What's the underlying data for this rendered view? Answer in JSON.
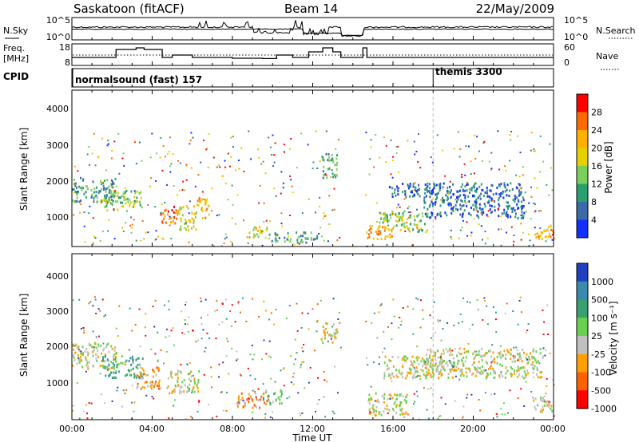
{
  "header": {
    "station": "Saskatoon (fitACF)",
    "beam": "Beam 14",
    "date": "22/May/2009"
  },
  "noise_panel": {
    "left_label": "N.Sky",
    "right_label": "N.Search",
    "left_ticks": [
      "10^5",
      "10^0"
    ],
    "right_ticks": [
      "10^5",
      "10^0"
    ]
  },
  "freq_panel": {
    "left_label_1": "Freq.",
    "left_label_2": "[MHz]",
    "right_label": "Nave",
    "left_ticks": [
      "18",
      "8"
    ],
    "right_ticks": [
      "60",
      "0"
    ]
  },
  "cpid_panel": {
    "label": "CPID",
    "modes": [
      {
        "name": "normalsound (fast) 157",
        "start_hour": 0
      },
      {
        "name": "themis 3300",
        "start_hour": 18.0
      }
    ]
  },
  "time_axis": {
    "label": "Time UT",
    "ticks": [
      "00:00",
      "04:00",
      "08:00",
      "12:00",
      "16:00",
      "20:00",
      "00:00"
    ]
  },
  "power_panel": {
    "ylabel": "Slant Range [km]",
    "yticks": [
      "4000",
      "3000",
      "2000",
      "1000"
    ],
    "colorbar_label": "Power [dB]",
    "colorbar_ticks": [
      "28",
      "24",
      "20",
      "16",
      "12",
      "8",
      "4"
    ],
    "colors": [
      "#ff0000",
      "#ff6a00",
      "#ffb000",
      "#e6d000",
      "#7ad05a",
      "#2aa070",
      "#3a6aa8",
      "#1030ff"
    ]
  },
  "velocity_panel": {
    "ylabel": "Slant Range [km]",
    "yticks": [
      "4000",
      "3000",
      "2000",
      "1000"
    ],
    "colorbar_label": "Velocity [m s⁻¹]",
    "colorbar_ticks": [
      "1000",
      "500",
      "100",
      "25",
      "-25",
      "-100",
      "-500",
      "-1000"
    ],
    "colors": [
      "#2040c0",
      "#3a8ab0",
      "#3aa070",
      "#6ad050",
      "#c0c0c0",
      "#ffa000",
      "#ff6000",
      "#ff0000"
    ]
  },
  "chart_data": {
    "type": "heatmap",
    "title": "Saskatoon (fitACF)  Beam 14  22/May/2009",
    "xlabel": "Time UT",
    "ylabel": "Slant Range [km]",
    "xlim_hours": [
      0,
      24
    ],
    "ylim_km": [
      180,
      4600
    ],
    "gap_hours": [
      13.4,
      14.6
    ],
    "mode_change_hour": 18.0,
    "freq_mhz": [
      [
        0,
        11.5
      ],
      [
        2.0,
        11.5
      ],
      [
        2.2,
        16.5
      ],
      [
        3.0,
        16.5
      ],
      [
        3.2,
        17.5
      ],
      [
        3.6,
        16.5
      ],
      [
        4.3,
        16.5
      ],
      [
        4.5,
        11.5
      ],
      [
        5.0,
        13
      ],
      [
        6.0,
        11.5
      ],
      [
        8.0,
        11
      ],
      [
        9.5,
        10.8
      ],
      [
        10.2,
        13
      ],
      [
        11.0,
        11.5
      ],
      [
        11.8,
        15
      ],
      [
        12.5,
        17.5
      ],
      [
        13.0,
        15
      ],
      [
        13.4,
        11.5
      ],
      [
        14.5,
        17.5
      ],
      [
        14.7,
        11.5
      ],
      [
        24,
        11.5
      ]
    ],
    "power_clusters": [
      {
        "t": 1.0,
        "r": 1800,
        "dt": 1.2,
        "dr": 350,
        "level": 5
      },
      {
        "t": 2.5,
        "r": 1500,
        "dt": 1.0,
        "dr": 300,
        "level": 4
      },
      {
        "t": 4.8,
        "r": 1100,
        "dt": 0.4,
        "dr": 250,
        "level": 1
      },
      {
        "t": 5.7,
        "r": 1000,
        "dt": 0.5,
        "dr": 350,
        "level": 3
      },
      {
        "t": 6.5,
        "r": 1300,
        "dt": 0.3,
        "dr": 300,
        "level": 2
      },
      {
        "t": 9.3,
        "r": 600,
        "dt": 0.6,
        "dr": 150,
        "level": 3
      },
      {
        "t": 11.0,
        "r": 450,
        "dt": 1.2,
        "dr": 150,
        "level": 5
      },
      {
        "t": 12.8,
        "r": 2500,
        "dt": 0.4,
        "dr": 350,
        "level": 5
      },
      {
        "t": 15.2,
        "r": 600,
        "dt": 0.8,
        "dr": 200,
        "level": 2
      },
      {
        "t": 16.5,
        "r": 900,
        "dt": 1.2,
        "dr": 300,
        "level": 4
      },
      {
        "t": 16.5,
        "r": 1800,
        "dt": 0.8,
        "dr": 200,
        "level": 6
      },
      {
        "t": 20.0,
        "r": 1500,
        "dt": 2.5,
        "dr": 500,
        "level": 6
      },
      {
        "t": 23.5,
        "r": 600,
        "dt": 0.5,
        "dr": 200,
        "level": 2
      }
    ],
    "velocity_clusters": [
      {
        "t": 1.0,
        "r": 1900,
        "dt": 1.2,
        "dr": 350,
        "level": 4
      },
      {
        "t": 2.5,
        "r": 1600,
        "dt": 1.0,
        "dr": 300,
        "level": 2
      },
      {
        "t": 3.8,
        "r": 1300,
        "dt": 0.6,
        "dr": 300,
        "level": 5
      },
      {
        "t": 5.5,
        "r": 1200,
        "dt": 0.8,
        "dr": 300,
        "level": 4
      },
      {
        "t": 9.0,
        "r": 700,
        "dt": 0.8,
        "dr": 200,
        "level": 5
      },
      {
        "t": 10.0,
        "r": 800,
        "dt": 0.5,
        "dr": 200,
        "level": 3
      },
      {
        "t": 12.8,
        "r": 2500,
        "dt": 0.4,
        "dr": 300,
        "level": 4
      },
      {
        "t": 15.5,
        "r": 600,
        "dt": 1.2,
        "dr": 300,
        "level": 4
      },
      {
        "t": 17.0,
        "r": 1600,
        "dt": 1.5,
        "dr": 300,
        "level": 4
      },
      {
        "t": 20.5,
        "r": 1700,
        "dt": 3.0,
        "dr": 400,
        "level": 4
      },
      {
        "t": 23.5,
        "r": 600,
        "dt": 0.6,
        "dr": 200,
        "level": 4
      }
    ]
  }
}
